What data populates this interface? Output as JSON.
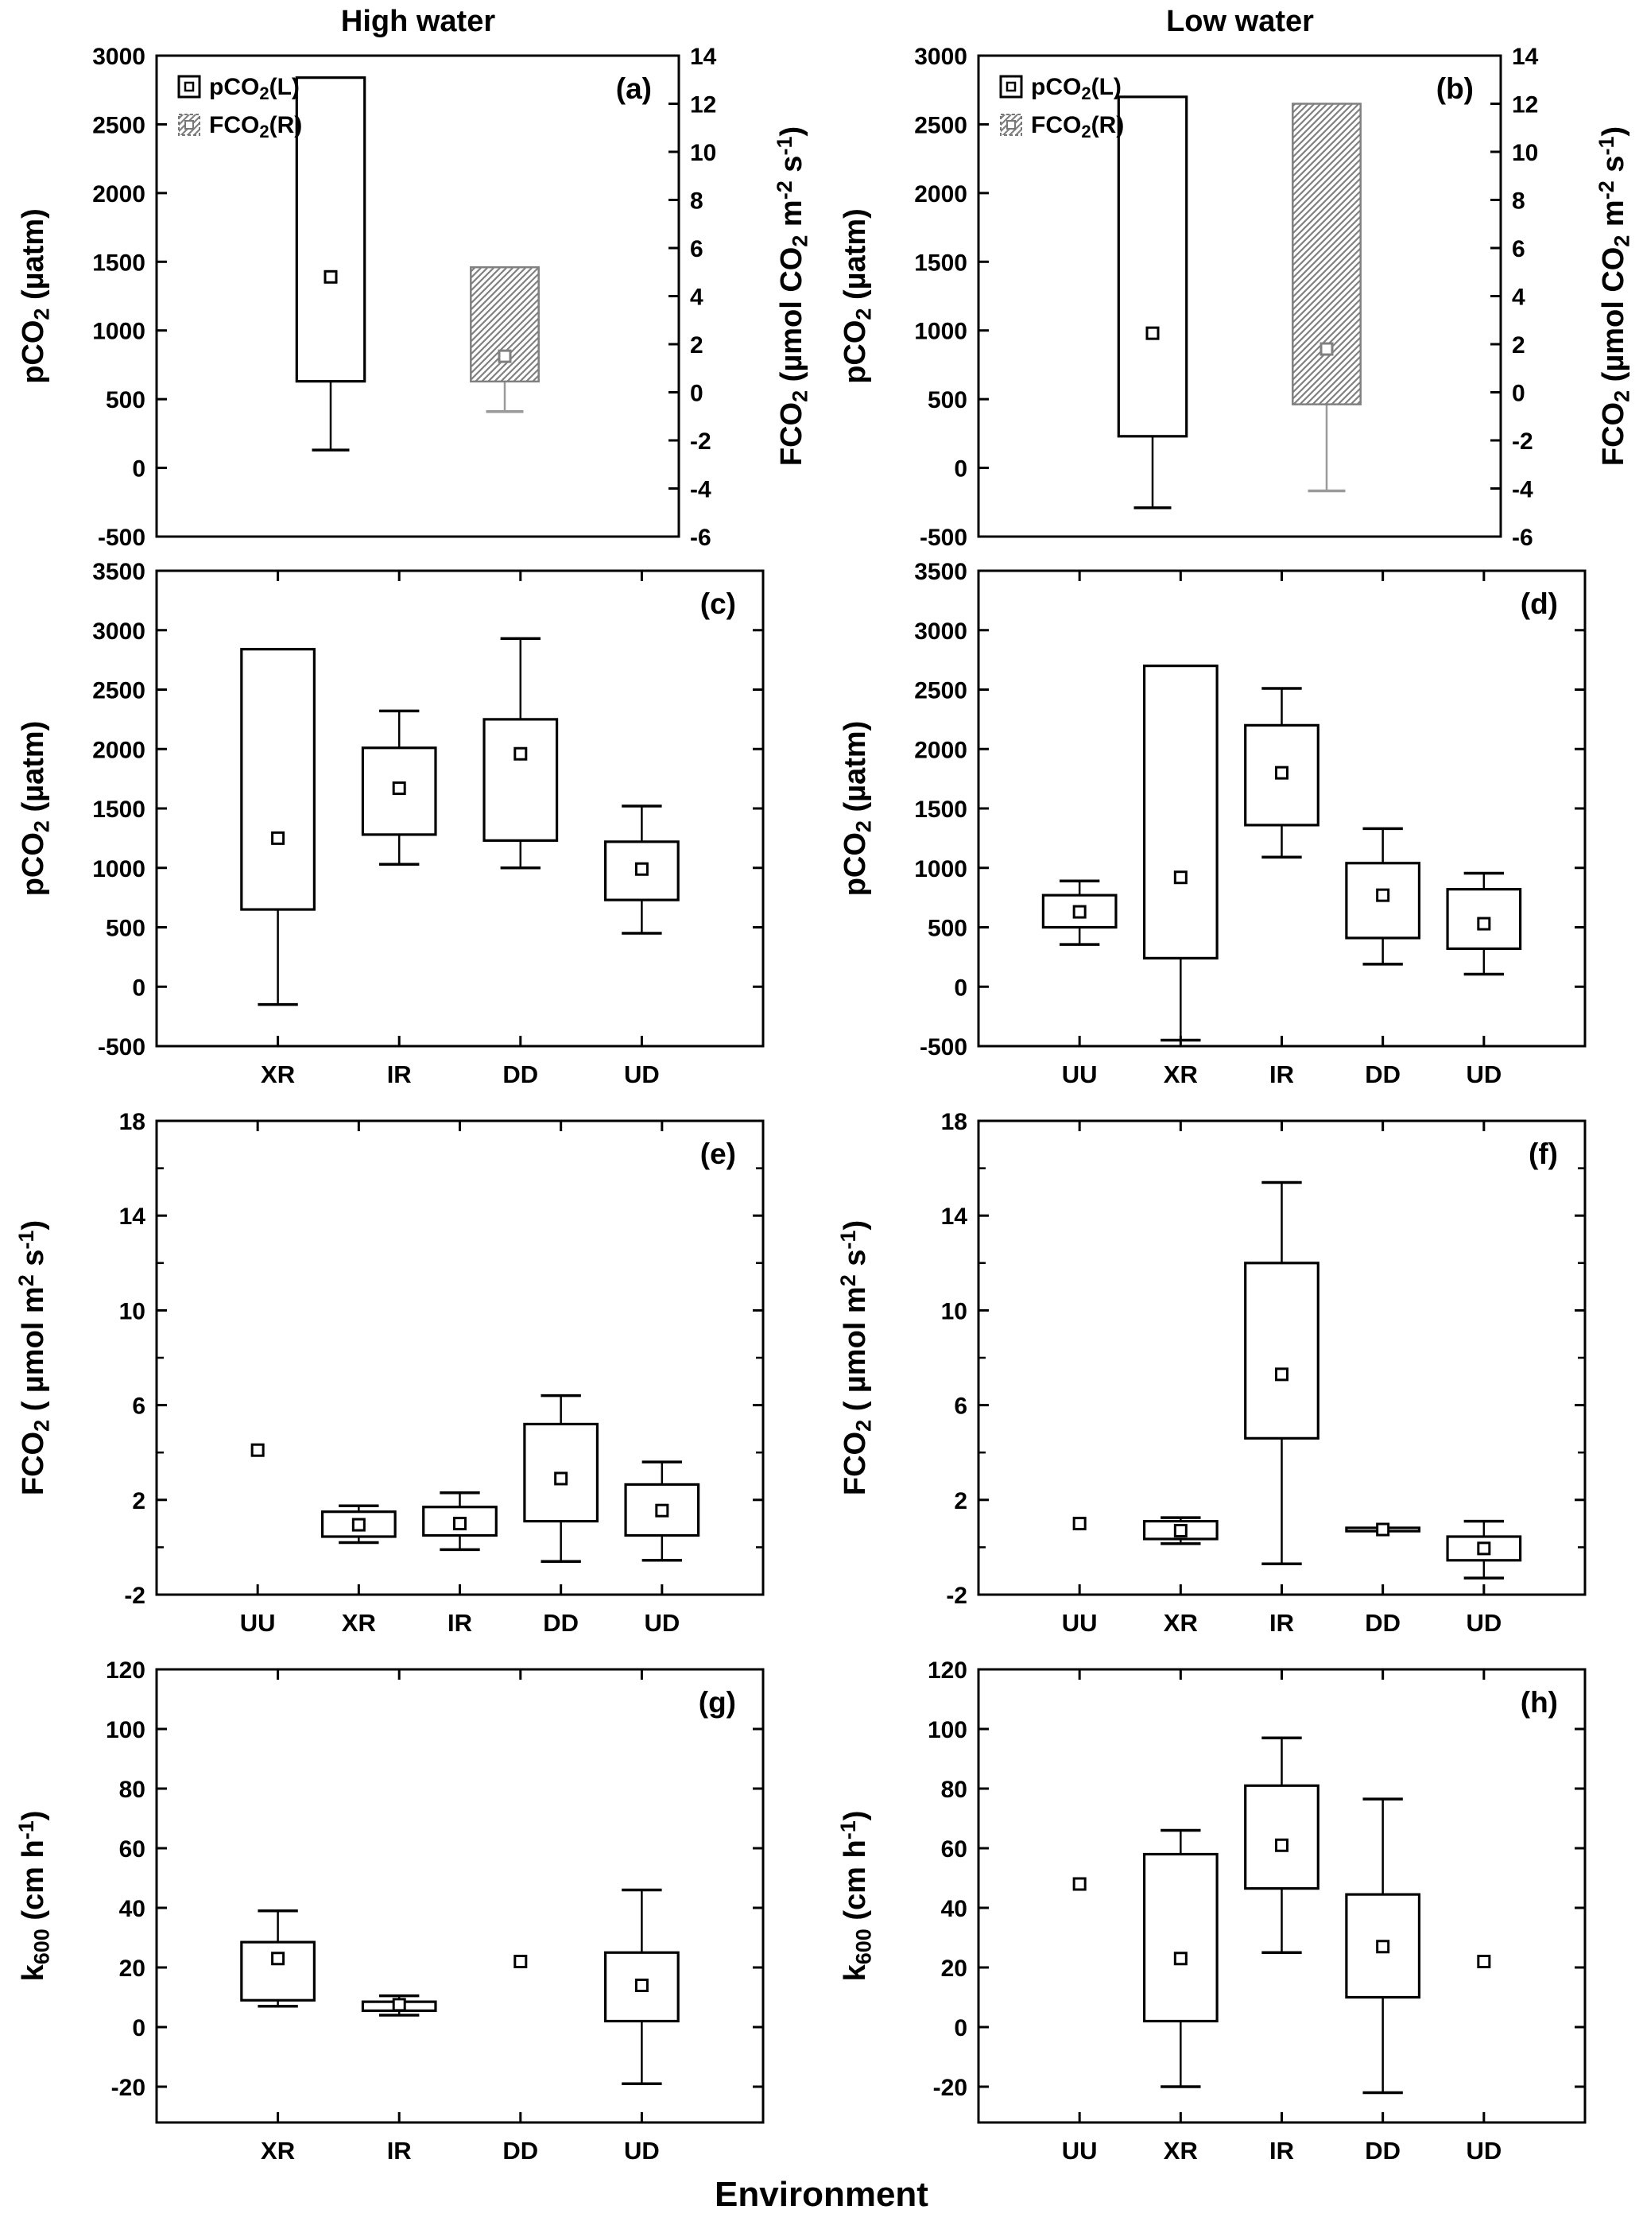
{
  "titles": {
    "left_column": "High water",
    "right_column": "Low water",
    "x_axis": "Environment"
  },
  "chart_data": [
    {
      "panel_label": "(a)",
      "water": "High water",
      "type": "box",
      "y_left": {
        "label": [
          [
            "pCO",
            0
          ],
          [
            "2",
            -1
          ],
          [
            " (µatm)",
            0
          ]
        ],
        "min": -500,
        "max": 3000,
        "ticks": [
          -500,
          0,
          500,
          1000,
          1500,
          2000,
          2500,
          3000
        ]
      },
      "y_right": {
        "label": [
          [
            "FCO",
            0
          ],
          [
            "2",
            -1
          ],
          [
            " (µmol CO",
            0
          ],
          [
            "2",
            -1
          ],
          [
            " m",
            0
          ],
          [
            "-2",
            1
          ],
          [
            " s",
            0
          ],
          [
            "-1",
            1
          ],
          [
            ")",
            0
          ]
        ],
        "min": -6,
        "max": 14,
        "ticks": [
          -6,
          -4,
          -2,
          0,
          2,
          4,
          6,
          8,
          10,
          12,
          14
        ]
      },
      "legend": [
        {
          "label": [
            [
              "pCO",
              0
            ],
            [
              "2",
              -1
            ],
            [
              "(L)",
              0
            ]
          ],
          "style": "open"
        },
        {
          "label": [
            [
              "FCO",
              0
            ],
            [
              "2",
              -1
            ],
            [
              "(R)",
              0
            ]
          ],
          "style": "hatched"
        }
      ],
      "boxes": [
        {
          "name": "pCO2",
          "axis": "left",
          "style": "open",
          "q1": 630,
          "q3": 2840,
          "mean": 1390,
          "whisker_low": 130,
          "whisker_high": null
        },
        {
          "name": "FCO2",
          "axis": "right",
          "style": "hatched",
          "q1": 0.45,
          "q3": 5.2,
          "mean": 1.5,
          "whisker_low": -0.8,
          "whisker_high": null
        }
      ]
    },
    {
      "panel_label": "(b)",
      "water": "Low water",
      "type": "box",
      "y_left": {
        "label": [
          [
            "pCO",
            0
          ],
          [
            "2",
            -1
          ],
          [
            " (µatm)",
            0
          ]
        ],
        "min": -500,
        "max": 3000,
        "ticks": [
          -500,
          0,
          500,
          1000,
          1500,
          2000,
          2500,
          3000
        ]
      },
      "y_right": {
        "label": [
          [
            "FCO",
            0
          ],
          [
            "2",
            -1
          ],
          [
            " (µmol CO",
            0
          ],
          [
            "2",
            -1
          ],
          [
            " m",
            0
          ],
          [
            "-2",
            1
          ],
          [
            " s",
            0
          ],
          [
            "-1",
            1
          ],
          [
            ")",
            0
          ]
        ],
        "min": -6,
        "max": 14,
        "ticks": [
          -6,
          -4,
          -2,
          0,
          2,
          4,
          6,
          8,
          10,
          12,
          14
        ]
      },
      "legend": [
        {
          "label": [
            [
              "pCO",
              0
            ],
            [
              "2",
              -1
            ],
            [
              "(L)",
              0
            ]
          ],
          "style": "open"
        },
        {
          "label": [
            [
              "FCO",
              0
            ],
            [
              "2",
              -1
            ],
            [
              "(R)",
              0
            ]
          ],
          "style": "hatched"
        }
      ],
      "boxes": [
        {
          "name": "pCO2",
          "axis": "left",
          "style": "open",
          "q1": 230,
          "q3": 2700,
          "mean": 980,
          "whisker_low": -290,
          "whisker_high": null
        },
        {
          "name": "FCO2",
          "axis": "right",
          "style": "hatched",
          "q1": -0.5,
          "q3": 12.0,
          "mean": 1.8,
          "whisker_low": -4.1,
          "whisker_high": null
        }
      ]
    },
    {
      "panel_label": "(c)",
      "water": "High water",
      "type": "box",
      "y_left": {
        "label": [
          [
            "pCO",
            0
          ],
          [
            "2",
            -1
          ],
          [
            " (µatm)",
            0
          ]
        ],
        "min": -500,
        "max": 3500,
        "ticks": [
          -500,
          0,
          500,
          1000,
          1500,
          2000,
          2500,
          3000,
          3500
        ]
      },
      "categories": [
        "XR",
        "IR",
        "DD",
        "UD"
      ],
      "boxes": [
        {
          "q1": 650,
          "q3": 2840,
          "mean": 1250,
          "whisker_low": -150,
          "whisker_high": null
        },
        {
          "q1": 1280,
          "q3": 2010,
          "mean": 1670,
          "whisker_low": 1030,
          "whisker_high": 2320
        },
        {
          "q1": 1230,
          "q3": 2250,
          "mean": 1960,
          "whisker_low": 1000,
          "whisker_high": 2930
        },
        {
          "q1": 730,
          "q3": 1220,
          "mean": 990,
          "whisker_low": 450,
          "whisker_high": 1520
        }
      ]
    },
    {
      "panel_label": "(d)",
      "water": "Low water",
      "type": "box",
      "y_left": {
        "label": [
          [
            "pCO",
            0
          ],
          [
            "2",
            -1
          ],
          [
            " (µatm)",
            0
          ]
        ],
        "min": -500,
        "max": 3500,
        "ticks": [
          -500,
          0,
          500,
          1000,
          1500,
          2000,
          2500,
          3000,
          3500
        ]
      },
      "categories": [
        "UU",
        "XR",
        "IR",
        "DD",
        "UD"
      ],
      "boxes": [
        {
          "q1": 500,
          "q3": 770,
          "mean": 630,
          "whisker_low": 355,
          "whisker_high": 890
        },
        {
          "q1": 240,
          "q3": 2700,
          "mean": 920,
          "whisker_low": -450,
          "whisker_high": null
        },
        {
          "q1": 1360,
          "q3": 2200,
          "mean": 1800,
          "whisker_low": 1090,
          "whisker_high": 2510
        },
        {
          "q1": 410,
          "q3": 1040,
          "mean": 770,
          "whisker_low": 190,
          "whisker_high": 1330
        },
        {
          "q1": 320,
          "q3": 820,
          "mean": 530,
          "whisker_low": 105,
          "whisker_high": 955
        }
      ]
    },
    {
      "panel_label": "(e)",
      "water": "High water",
      "type": "box",
      "y_left": {
        "label": [
          [
            "FCO",
            0
          ],
          [
            "2",
            -1
          ],
          [
            " ( µmol m",
            0
          ],
          [
            "2",
            1
          ],
          [
            " s",
            0
          ],
          [
            "-1",
            1
          ],
          [
            ")",
            0
          ]
        ],
        "min": -2,
        "max": 18,
        "ticks": [
          -2,
          2,
          6,
          10,
          14,
          18
        ],
        "minor_ticks": [
          0,
          4,
          8,
          12,
          16
        ]
      },
      "categories": [
        "UU",
        "XR",
        "IR",
        "DD",
        "UD"
      ],
      "boxes": [
        {
          "q1": null,
          "q3": null,
          "mean": 4.1,
          "whisker_low": null,
          "whisker_high": null
        },
        {
          "q1": 0.45,
          "q3": 1.5,
          "mean": 0.95,
          "whisker_low": 0.2,
          "whisker_high": 1.75
        },
        {
          "q1": 0.5,
          "q3": 1.7,
          "mean": 1.0,
          "whisker_low": -0.1,
          "whisker_high": 2.3
        },
        {
          "q1": 1.1,
          "q3": 5.2,
          "mean": 2.9,
          "whisker_low": -0.6,
          "whisker_high": 6.4
        },
        {
          "q1": 0.5,
          "q3": 2.65,
          "mean": 1.55,
          "whisker_low": -0.55,
          "whisker_high": 3.6
        }
      ]
    },
    {
      "panel_label": "(f)",
      "water": "Low water",
      "type": "box",
      "y_left": {
        "label": [
          [
            "FCO",
            0
          ],
          [
            "2",
            -1
          ],
          [
            " ( µmol m",
            0
          ],
          [
            "2",
            1
          ],
          [
            " s",
            0
          ],
          [
            "-1",
            1
          ],
          [
            ")",
            0
          ]
        ],
        "min": -2,
        "max": 18,
        "ticks": [
          -2,
          2,
          6,
          10,
          14,
          18
        ],
        "minor_ticks": [
          0,
          4,
          8,
          12,
          16
        ]
      },
      "categories": [
        "UU",
        "XR",
        "IR",
        "DD",
        "UD"
      ],
      "boxes": [
        {
          "q1": null,
          "q3": null,
          "mean": 1.0,
          "whisker_low": null,
          "whisker_high": null
        },
        {
          "q1": 0.35,
          "q3": 1.1,
          "mean": 0.7,
          "whisker_low": 0.15,
          "whisker_high": 1.25
        },
        {
          "q1": 4.6,
          "q3": 12.0,
          "mean": 7.3,
          "whisker_low": -0.7,
          "whisker_high": 15.4
        },
        {
          "q1": 0.68,
          "q3": 0.82,
          "mean": 0.75,
          "whisker_low": null,
          "whisker_high": null
        },
        {
          "q1": -0.55,
          "q3": 0.45,
          "mean": -0.05,
          "whisker_low": -1.3,
          "whisker_high": 1.1
        }
      ]
    },
    {
      "panel_label": "(g)",
      "water": "High water",
      "type": "box",
      "y_left": {
        "label": [
          [
            "k",
            0
          ],
          [
            "600",
            -1
          ],
          [
            " (cm h",
            0
          ],
          [
            "-1",
            1
          ],
          [
            ")",
            0
          ]
        ],
        "min": -32,
        "max": 120,
        "ticks": [
          -20,
          0,
          20,
          40,
          60,
          80,
          100,
          120
        ]
      },
      "categories": [
        "XR",
        "IR",
        "DD",
        "UD"
      ],
      "boxes": [
        {
          "q1": 9,
          "q3": 28.5,
          "mean": 23,
          "whisker_low": 7,
          "whisker_high": 39
        },
        {
          "q1": 5.5,
          "q3": 8.5,
          "mean": 7.5,
          "whisker_low": 4,
          "whisker_high": 10.5
        },
        {
          "q1": null,
          "q3": null,
          "mean": 22,
          "whisker_low": null,
          "whisker_high": null
        },
        {
          "q1": 2,
          "q3": 25,
          "mean": 14,
          "whisker_low": -19,
          "whisker_high": 46
        }
      ]
    },
    {
      "panel_label": "(h)",
      "water": "Low water",
      "type": "box",
      "y_left": {
        "label": [
          [
            "k",
            0
          ],
          [
            "600",
            -1
          ],
          [
            " (cm h",
            0
          ],
          [
            "-1",
            1
          ],
          [
            ")",
            0
          ]
        ],
        "min": -32,
        "max": 120,
        "ticks": [
          -20,
          0,
          20,
          40,
          60,
          80,
          100,
          120
        ]
      },
      "categories": [
        "UU",
        "XR",
        "IR",
        "DD",
        "UD"
      ],
      "boxes": [
        {
          "q1": null,
          "q3": null,
          "mean": 48,
          "whisker_low": null,
          "whisker_high": null
        },
        {
          "q1": 2,
          "q3": 58,
          "mean": 23,
          "whisker_low": -20,
          "whisker_high": 66
        },
        {
          "q1": 46.5,
          "q3": 81,
          "mean": 61,
          "whisker_low": 25,
          "whisker_high": 97
        },
        {
          "q1": 10,
          "q3": 44.5,
          "mean": 27,
          "whisker_low": -22,
          "whisker_high": 76.5
        },
        {
          "q1": null,
          "q3": null,
          "mean": 22,
          "whisker_low": null,
          "whisker_high": null
        }
      ]
    }
  ]
}
